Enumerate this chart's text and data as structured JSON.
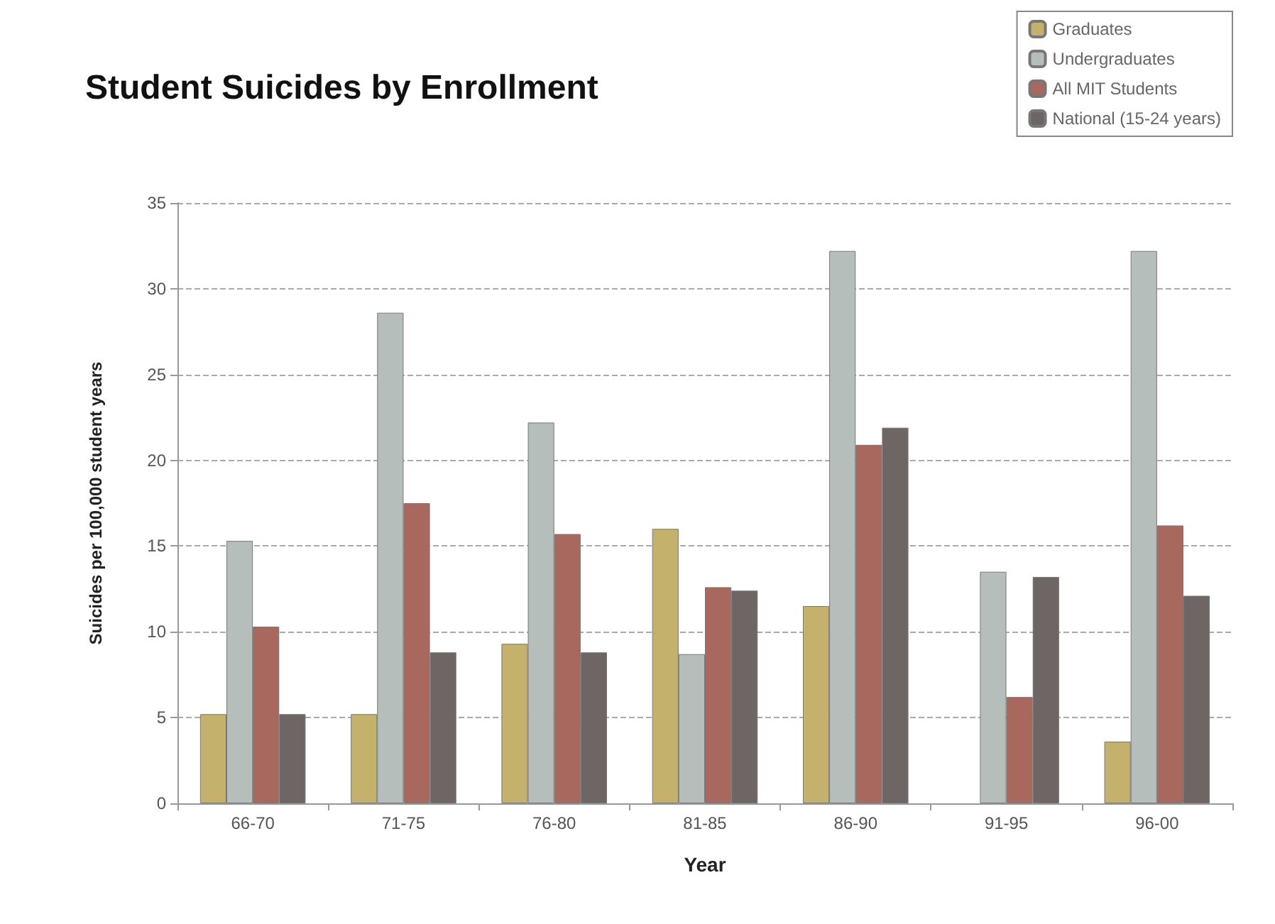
{
  "chart_data": {
    "type": "bar",
    "title": "Student Suicides by Enrollment",
    "xlabel": "Year",
    "ylabel": "Suicides per 100,000 student years",
    "categories": [
      "66-70",
      "71-75",
      "76-80",
      "81-85",
      "86-90",
      "91-95",
      "96-00"
    ],
    "series": [
      {
        "name": "Graduates",
        "color": "#c4b26c",
        "values": [
          5.2,
          5.2,
          9.3,
          16.0,
          11.5,
          null,
          3.6
        ]
      },
      {
        "name": "Undergraduates",
        "color": "#b6bebb",
        "values": [
          15.3,
          28.6,
          22.2,
          8.7,
          32.2,
          13.5,
          32.2
        ]
      },
      {
        "name": "All MIT Students",
        "color": "#a8685e",
        "values": [
          10.3,
          17.5,
          15.7,
          12.6,
          20.9,
          6.2,
          16.2
        ]
      },
      {
        "name": "National (15-24 years)",
        "color": "#6e6664",
        "values": [
          5.2,
          8.8,
          8.8,
          12.4,
          21.9,
          13.2,
          12.1
        ]
      }
    ],
    "ylim": [
      0,
      35
    ],
    "yticks": [
      0,
      5,
      10,
      15,
      20,
      25,
      30,
      35
    ],
    "grid": "y",
    "legend": "top right"
  }
}
